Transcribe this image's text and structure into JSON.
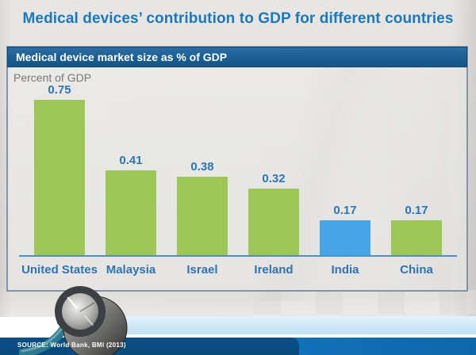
{
  "slide": {
    "title": "Medical devices’ contribution to GDP for different countries",
    "panel_header": "Medical device market size as % of GDP",
    "axis_note": "Percent of GDP",
    "source": "SOURCE: World Bank, BMI (2013)"
  },
  "colors": {
    "title_blue": "#1879c0",
    "header_bg": "#1b5e92",
    "label_blue": "#2d74b5",
    "axis_line_blue": "#4e8fc7",
    "bar_green": "#9cc655",
    "bar_blue": "#45a5e6",
    "band_light_blue": "#cfe8f8",
    "band_dark_blue": "#0d5d9e",
    "axis_note_gray": "#787878"
  },
  "chart_data": {
    "type": "bar",
    "title": "Medical device market size as % of GDP",
    "ylabel": "Percent of GDP",
    "xlabel": "",
    "categories": [
      "United States",
      "Malaysia",
      "Israel",
      "Ireland",
      "India",
      "China"
    ],
    "values": [
      0.75,
      0.41,
      0.38,
      0.32,
      0.17,
      0.17
    ],
    "bar_colors": [
      "#9cc655",
      "#9cc655",
      "#9cc655",
      "#9cc655",
      "#45a5e6",
      "#9cc655"
    ],
    "highlight_category": "India",
    "value_labels_shown": true,
    "ylim": [
      0,
      0.8
    ],
    "grid": false,
    "legend": null
  }
}
